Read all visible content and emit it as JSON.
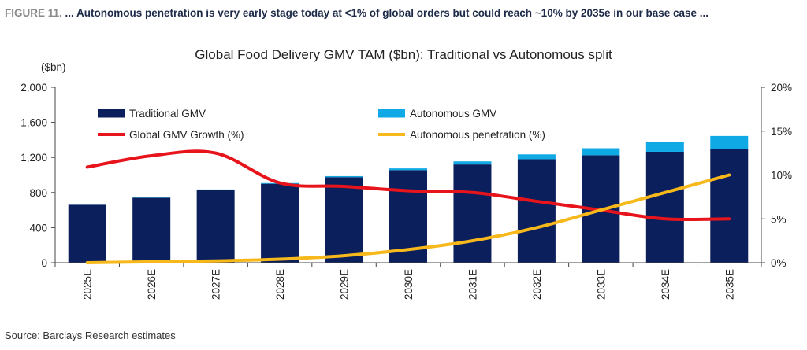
{
  "figure": {
    "number": "FIGURE 11.",
    "caption": "... Autonomous penetration is very early stage today at <1% of global orders but could reach ~10% by 2035e in our base case ..."
  },
  "source": "Source: Barclays Research estimates",
  "chart_data": {
    "type": "bar",
    "title": "Global Food Delivery GMV TAM ($bn): Traditional vs Autonomous split",
    "ylabel": "($bn)",
    "y2label": "",
    "categories": [
      "2025E",
      "2026E",
      "2027E",
      "2028E",
      "2029E",
      "2030E",
      "2031E",
      "2032E",
      "2033E",
      "2034E",
      "2035E"
    ],
    "ylim": [
      0,
      2000
    ],
    "yticks": [
      "0",
      "400",
      "800",
      "1,200",
      "1,600",
      "2,000"
    ],
    "ytick_values": [
      0,
      400,
      800,
      1200,
      1600,
      2000
    ],
    "y2lim": [
      0,
      20
    ],
    "y2ticks": [
      "0%",
      "5%",
      "10%",
      "15%",
      "20%"
    ],
    "y2tick_values": [
      0,
      5,
      10,
      15,
      20
    ],
    "stacked": true,
    "grid": false,
    "legend_position": "top",
    "series": [
      {
        "name": "Traditional GMV",
        "kind": "bar",
        "axis": "left",
        "color": "#0b1f5c",
        "values": [
          660,
          740,
          830,
          900,
          975,
          1055,
          1120,
          1180,
          1225,
          1265,
          1300
        ]
      },
      {
        "name": "Autonomous GMV",
        "kind": "bar",
        "axis": "left",
        "color": "#0fa9e6",
        "values": [
          1,
          3,
          5,
          8,
          12,
          20,
          35,
          55,
          80,
          110,
          145
        ]
      },
      {
        "name": "Global GMV Growth (%)",
        "kind": "line",
        "axis": "right",
        "color": "#e8141c",
        "values": [
          10.9,
          12.2,
          12.5,
          9.1,
          8.7,
          8.2,
          8.0,
          7.0,
          6.0,
          5.0,
          5.0
        ]
      },
      {
        "name": "Autonomous penetration (%)",
        "kind": "line",
        "axis": "right",
        "color": "#f7b81b",
        "values": [
          0.0,
          0.1,
          0.2,
          0.4,
          0.8,
          1.5,
          2.5,
          4.0,
          6.0,
          8.0,
          10.0
        ]
      }
    ]
  }
}
